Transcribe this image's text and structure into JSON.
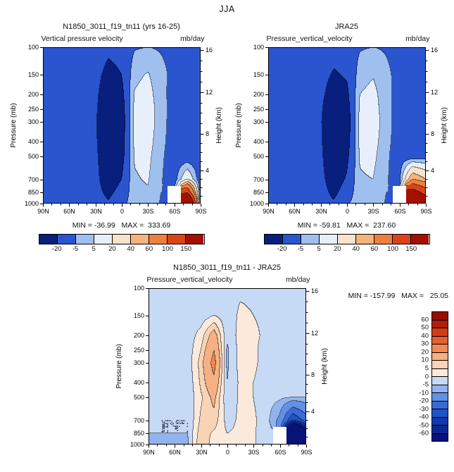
{
  "page": {
    "title": "JJA"
  },
  "axes": {
    "pressure_axis_title": "Pressure (mb)",
    "height_axis_title": "Height (km)",
    "pressure_ticks": [
      100,
      150,
      200,
      250,
      300,
      400,
      500,
      700,
      850,
      1000
    ],
    "lat_ticks": [
      {
        "label": "90N",
        "lat": 90
      },
      {
        "label": "60N",
        "lat": 60
      },
      {
        "label": "30N",
        "lat": 30
      },
      {
        "label": "0",
        "lat": 0
      },
      {
        "label": "30S",
        "lat": -30
      },
      {
        "label": "60S",
        "lat": -60
      },
      {
        "label": "90S",
        "lat": -90
      }
    ],
    "height_ticks": [
      {
        "label": "16",
        "mb": 104
      },
      {
        "label": "12",
        "mb": 194
      },
      {
        "label": "8",
        "mb": 357
      },
      {
        "label": "4",
        "mb": 617
      }
    ],
    "height_scale": [
      [
        0,
        1013
      ],
      [
        4,
        617
      ],
      [
        8,
        357
      ],
      [
        12,
        194
      ],
      [
        16,
        104
      ]
    ]
  },
  "colormaps": {
    "main": {
      "bounds": [
        -20,
        -5,
        5,
        20,
        40,
        60,
        100,
        150
      ],
      "colors": [
        "#081f7e",
        "#2b55cf",
        "#9fc0ee",
        "#e6effb",
        "#fbe3cb",
        "#f7b379",
        "#ef7f3d",
        "#da4417",
        "#a50f00"
      ],
      "tick_labels": [
        "-20",
        "-5",
        "5",
        "20",
        "40",
        "60",
        "100",
        "150"
      ]
    },
    "diff": {
      "bounds": [
        -60,
        -50,
        -40,
        -30,
        -20,
        -10,
        -5,
        0,
        5,
        10,
        20,
        30,
        40,
        50,
        60
      ],
      "colors": [
        "#08137a",
        "#0c2695",
        "#1239b0",
        "#2152c8",
        "#3a6ad8",
        "#6190e6",
        "#92b3ee",
        "#c6d9f5",
        "#fbe9dc",
        "#f9d3b5",
        "#f5b183",
        "#ef8a52",
        "#e6602e",
        "#d23b16",
        "#b51d08",
        "#930f02"
      ],
      "tick_labels": [
        "60",
        "50",
        "40",
        "30",
        "20",
        "10",
        "5",
        "0",
        "-5",
        "-10",
        "-20",
        "-30",
        "-40",
        "-50",
        "-60"
      ]
    }
  },
  "panels": {
    "model": {
      "title": "N1850_3011_f19_tn11 (yrs 16-25)",
      "sub_left": "Vertical pressure velocity",
      "sub_right": "mb/day",
      "minmax": "MIN = -36.99   MAX =  333.69"
    },
    "jra": {
      "title": "JRA25",
      "sub_left": "Pressure_vertical_velocity",
      "sub_right": "mb/day",
      "minmax": "MIN = -59.81   MAX =  237.60"
    },
    "diff": {
      "title": "N1850_3011_f19_tn11 - JRA25",
      "sub_left": "Pressure_vertical_velocity",
      "sub_right": "mb/day",
      "minmax": "MIN = -157.99   MAX =   25.05"
    }
  },
  "chart_data": [
    {
      "id": "c-model",
      "name": "model",
      "type": "heatmap",
      "title": "N1850_3011_f19_tn11 (yrs 16-25)",
      "field": "Vertical pressure velocity",
      "units": "mb/day",
      "xlabel": "latitude",
      "ylabel": "Pressure (mb)",
      "colormap": "main",
      "min": -36.99,
      "max": 333.69,
      "x_lats": [
        90,
        75,
        60,
        45,
        30,
        15,
        0,
        -15,
        -30,
        -45,
        -60,
        -75,
        -90
      ],
      "y_levels_mb": [
        100,
        150,
        200,
        250,
        300,
        400,
        500,
        700,
        850,
        1000
      ],
      "values": [
        [
          -8,
          -8,
          -8,
          -7,
          -10,
          -16,
          -13,
          -6,
          -5,
          -6,
          -8,
          -8,
          -8
        ],
        [
          -8,
          -9,
          -11,
          -9,
          -14,
          -26,
          -20,
          2,
          6,
          -2,
          -8,
          -9,
          -8
        ],
        [
          -9,
          -10,
          -12,
          -10,
          -16,
          -32,
          -25,
          6,
          10,
          -2,
          -9,
          -10,
          -9
        ],
        [
          -9,
          -11,
          -13,
          -11,
          -17,
          -35,
          -28,
          8,
          12,
          -1,
          -9,
          -11,
          -10
        ],
        [
          -10,
          -12,
          -14,
          -12,
          -18,
          -36,
          -30,
          8,
          12,
          -1,
          -10,
          -12,
          -10
        ],
        [
          -10,
          -12,
          -14,
          -12,
          -17,
          -36,
          -28,
          8,
          10,
          -2,
          -10,
          -12,
          -11
        ],
        [
          -11,
          -13,
          -15,
          -12,
          -16,
          -34,
          -26,
          6,
          8,
          -3,
          -11,
          -14,
          -12
        ],
        [
          -12,
          -14,
          -16,
          -13,
          -15,
          -30,
          -20,
          4,
          6,
          -4,
          -12,
          20,
          -14
        ],
        [
          -12,
          -15,
          -16,
          -13,
          -14,
          -24,
          -14,
          2,
          4,
          -5,
          null,
          140,
          -16
        ],
        [
          -13,
          -15,
          -16,
          -14,
          -12,
          -18,
          -8,
          0,
          2,
          -6,
          null,
          320,
          -18
        ]
      ]
    },
    {
      "id": "c-jra",
      "name": "jra25",
      "type": "heatmap",
      "title": "JRA25",
      "field": "Pressure_vertical_velocity",
      "units": "mb/day",
      "xlabel": "latitude",
      "ylabel": "Pressure (mb)",
      "colormap": "main",
      "min": -59.81,
      "max": 237.6,
      "x_lats": [
        90,
        75,
        60,
        45,
        30,
        15,
        0,
        -15,
        -30,
        -45,
        -60,
        -75,
        -90
      ],
      "y_levels_mb": [
        100,
        150,
        200,
        250,
        300,
        400,
        500,
        700,
        850,
        1000
      ],
      "values": [
        [
          -8,
          -8,
          -8,
          -7,
          -10,
          -13,
          -11,
          -6,
          -5,
          -6,
          -8,
          -8,
          -8
        ],
        [
          -8,
          -9,
          -10,
          -9,
          -13,
          -22,
          -18,
          0,
          4,
          -3,
          -8,
          -9,
          -8
        ],
        [
          -9,
          -10,
          -11,
          -10,
          -15,
          -30,
          -24,
          5,
          9,
          -2,
          -9,
          -10,
          -9
        ],
        [
          -9,
          -10,
          -12,
          -11,
          -16,
          -40,
          -28,
          7,
          11,
          -2,
          -9,
          -10,
          -9
        ],
        [
          -10,
          -11,
          -13,
          -11,
          -17,
          -48,
          -30,
          8,
          12,
          -1,
          -10,
          -11,
          -10
        ],
        [
          -10,
          -12,
          -13,
          -12,
          -16,
          -45,
          -28,
          8,
          10,
          -2,
          -10,
          -12,
          -10
        ],
        [
          -11,
          -12,
          -14,
          -12,
          -15,
          -40,
          -24,
          6,
          8,
          -3,
          -11,
          -13,
          -11
        ],
        [
          -12,
          -13,
          -15,
          -13,
          -14,
          -30,
          -18,
          4,
          5,
          -4,
          -10,
          60,
          40
        ],
        [
          -12,
          -14,
          -15,
          -13,
          -13,
          -24,
          -12,
          2,
          3,
          -5,
          null,
          180,
          130
        ],
        [
          -13,
          -14,
          -16,
          -14,
          -12,
          -18,
          -6,
          0,
          1,
          -6,
          null,
          230,
          200
        ]
      ]
    },
    {
      "id": "c-diff",
      "name": "model-minus-jra25",
      "type": "heatmap",
      "title": "N1850_3011_f19_tn11 - JRA25",
      "field": "Pressure_vertical_velocity",
      "units": "mb/day",
      "xlabel": "latitude",
      "ylabel": "Pressure (mb)",
      "colormap": "diff",
      "min": -157.99,
      "max": 25.05,
      "x_lats": [
        90,
        75,
        60,
        45,
        30,
        15,
        0,
        -15,
        -30,
        -45,
        -60,
        -75,
        -90
      ],
      "y_levels_mb": [
        100,
        150,
        200,
        250,
        300,
        400,
        500,
        700,
        850,
        1000
      ],
      "values": [
        [
          -2,
          -2,
          -2,
          -2,
          -2,
          -3,
          -2,
          -1,
          -1,
          -1,
          -2,
          -2,
          -2
        ],
        [
          -2,
          -2,
          -3,
          -2,
          -3,
          0,
          -3,
          1,
          0,
          -1,
          -2,
          -2,
          -2
        ],
        [
          -2,
          -3,
          -3,
          -3,
          2,
          14,
          -4,
          2,
          1,
          -1,
          -2,
          -2,
          -2
        ],
        [
          -3,
          -3,
          -3,
          -3,
          5,
          20,
          -6,
          2,
          1,
          -2,
          -3,
          -3,
          -3
        ],
        [
          -3,
          -3,
          -4,
          -3,
          7,
          24,
          -6,
          2,
          1,
          -2,
          -3,
          -3,
          -3
        ],
        [
          -3,
          -4,
          -4,
          -4,
          6,
          18,
          -5,
          1,
          0,
          -2,
          -3,
          -4,
          -4
        ],
        [
          -4,
          -4,
          -4,
          -4,
          4,
          12,
          -4,
          1,
          0,
          -3,
          -4,
          -5,
          -5
        ],
        [
          -4,
          -5,
          -5,
          -5,
          6,
          8,
          -2,
          1,
          1,
          -3,
          -12,
          -40,
          -25
        ],
        [
          -5,
          -5,
          -5,
          -5,
          8,
          4,
          0,
          1,
          1,
          -4,
          null,
          -130,
          -70
        ],
        [
          -5,
          -6,
          -6,
          -6,
          10,
          2,
          1,
          1,
          1,
          -4,
          null,
          -150,
          -85
        ]
      ]
    }
  ]
}
